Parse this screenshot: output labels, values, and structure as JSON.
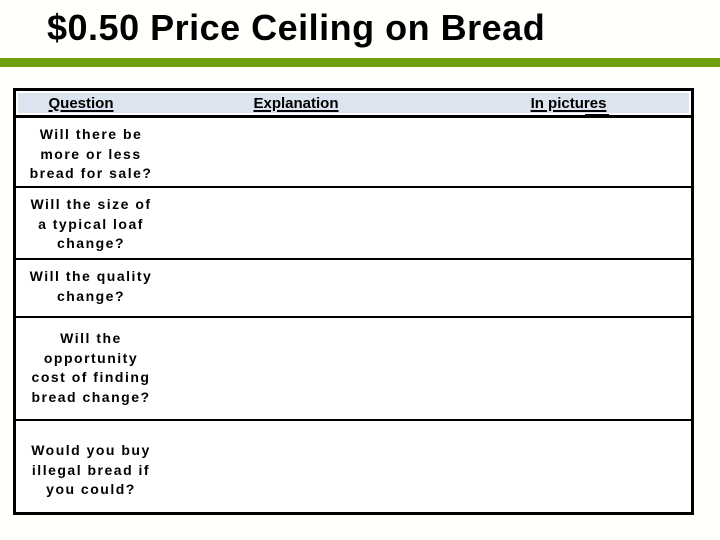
{
  "slide": {
    "title": "$0.50 Price Ceiling on Bread",
    "accent_bar_color": "#6F9E0B"
  },
  "table": {
    "header_background": "#DCE4F0",
    "border_color": "#000000",
    "headers": [
      "Question",
      "Explanation",
      "In pictures"
    ],
    "rows": [
      {
        "question": "Will there be\nmore or less\nbread for sale?",
        "explanation": "",
        "in_pictures": ""
      },
      {
        "question": "Will the size of\na typical loaf\nchange?",
        "explanation": "",
        "in_pictures": ""
      },
      {
        "question": "Will the quality\nchange?",
        "explanation": "",
        "in_pictures": ""
      },
      {
        "question": "Will the\nopportunity\ncost of finding\nbread change?",
        "explanation": "",
        "in_pictures": ""
      },
      {
        "question": "Would you buy\nillegal bread if\nyou could?",
        "explanation": "",
        "in_pictures": ""
      }
    ]
  }
}
